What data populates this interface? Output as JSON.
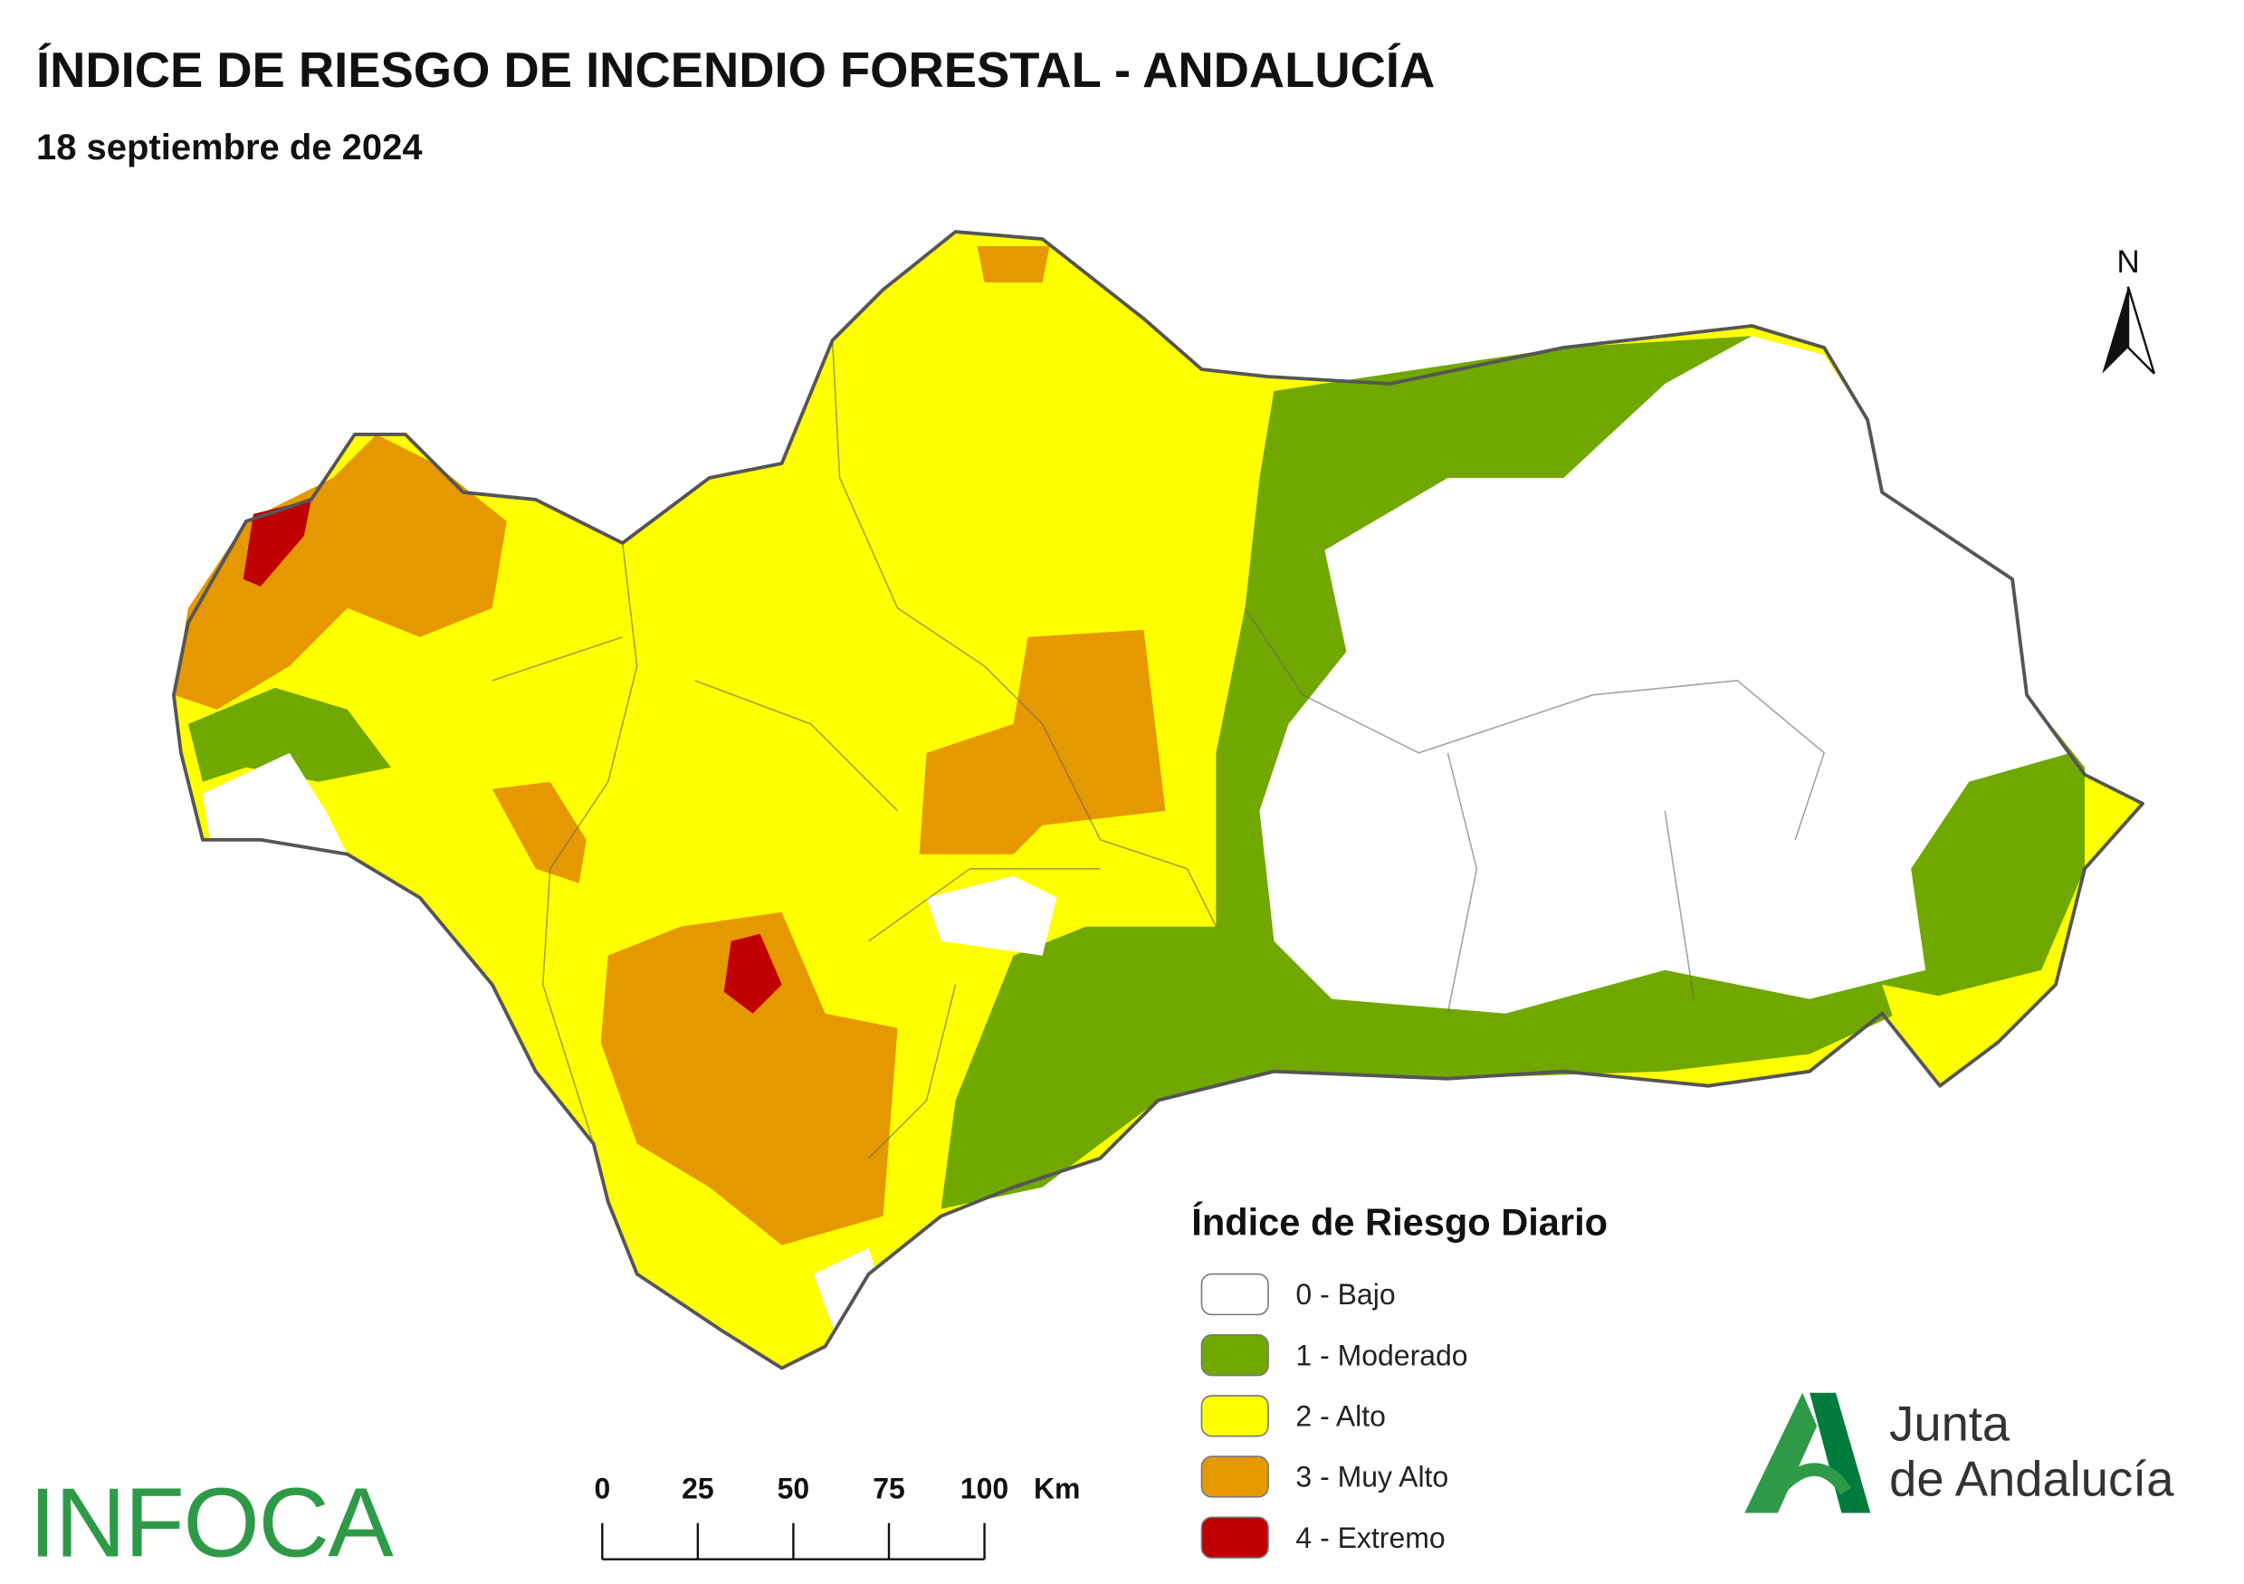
{
  "header": {
    "title": "ÍNDICE DE RIESGO DE INCENDIO FORESTAL - ANDALUCÍA",
    "subtitle": "18 septiembre de 2024"
  },
  "north": "N",
  "legend": {
    "title": "Índice de Riesgo Diario",
    "items": [
      {
        "label": "0 - Bajo",
        "color": "#ffffff"
      },
      {
        "label": "1 - Moderado",
        "color": "#70a800"
      },
      {
        "label": "2 - Alto",
        "color": "#ffff00"
      },
      {
        "label": "3 - Muy Alto",
        "color": "#e69800"
      },
      {
        "label": "4 - Extremo",
        "color": "#c00000"
      }
    ]
  },
  "scale": {
    "ticks": [
      0,
      25,
      50,
      75,
      100
    ],
    "unit": "Km"
  },
  "logos": {
    "infoca": "INFOCA",
    "junta_line1": "Junta",
    "junta_line2": "de Andalucía"
  }
}
